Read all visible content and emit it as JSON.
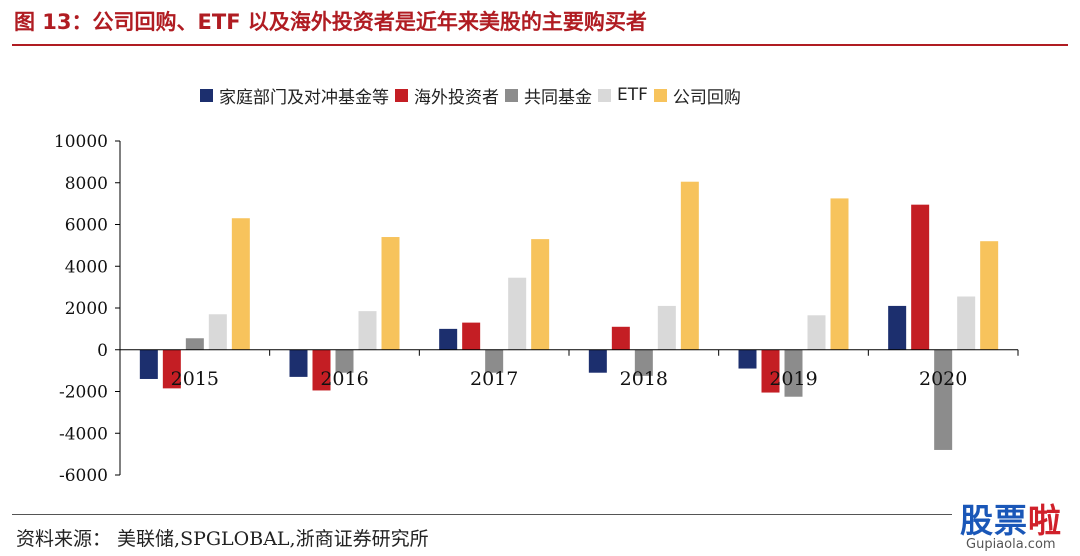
{
  "title": "图 13：公司回购、ETF 以及海外投资者是近年来美股的主要购买者",
  "source": "资料来源：  美联储,SPGLOBAL,浙商证券研究所",
  "watermark": {
    "main": "股票",
    "accent": "啦",
    "url": "Gupiaola.com"
  },
  "colors": {
    "title": "#b01c22",
    "series": [
      "#1c2f6e",
      "#c41e24",
      "#8c8c8c",
      "#d9d9d9",
      "#f7c35c"
    ]
  },
  "chart_data": {
    "type": "bar",
    "title": "",
    "xlabel": "",
    "ylabel": "",
    "ylim": [
      -6000,
      10000
    ],
    "yticks": [
      10000,
      8000,
      6000,
      4000,
      2000,
      0,
      -2000,
      -4000,
      -6000
    ],
    "grid": false,
    "legend_position": "top-center",
    "categories": [
      "2015",
      "2016",
      "2017",
      "2018",
      "2019",
      "2020"
    ],
    "series": [
      {
        "name": "家庭部门及对冲基金等",
        "values": [
          -1400,
          -1300,
          1000,
          -1100,
          -900,
          2100
        ]
      },
      {
        "name": "海外投资者",
        "values": [
          -1850,
          -1950,
          1300,
          1100,
          -2050,
          6950
        ]
      },
      {
        "name": "共同基金",
        "values": [
          550,
          -1100,
          -1100,
          -1250,
          -2250,
          -4800
        ]
      },
      {
        "name": "ETF",
        "values": [
          1700,
          1850,
          3450,
          2100,
          1650,
          2550
        ]
      },
      {
        "name": "公司回购",
        "values": [
          6300,
          5400,
          5300,
          8050,
          7250,
          5200
        ]
      }
    ]
  }
}
